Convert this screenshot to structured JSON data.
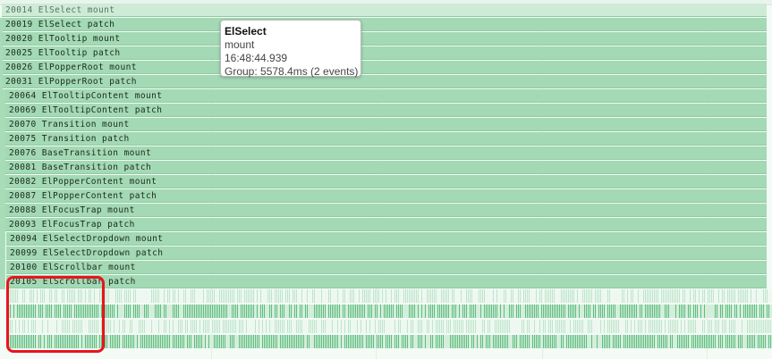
{
  "timeline": {
    "rows": [
      {
        "id": "20014",
        "label": "ElSelect mount"
      },
      {
        "id": "20019",
        "label": "ElSelect patch"
      },
      {
        "id": "20020",
        "label": "ElTooltip mount"
      },
      {
        "id": "20025",
        "label": "ElTooltip patch"
      },
      {
        "id": "20026",
        "label": "ElPopperRoot mount"
      },
      {
        "id": "20031",
        "label": "ElPopperRoot patch"
      },
      {
        "id": "20064",
        "label": "ElTooltipContent mount"
      },
      {
        "id": "20069",
        "label": "ElTooltipContent patch"
      },
      {
        "id": "20070",
        "label": "Transition mount"
      },
      {
        "id": "20075",
        "label": "Transition patch"
      },
      {
        "id": "20076",
        "label": "BaseTransition mount"
      },
      {
        "id": "20081",
        "label": "BaseTransition patch"
      },
      {
        "id": "20082",
        "label": "ElPopperContent mount"
      },
      {
        "id": "20087",
        "label": "ElPopperContent patch"
      },
      {
        "id": "20088",
        "label": "ElFocusTrap mount"
      },
      {
        "id": "20093",
        "label": "ElFocusTrap patch"
      },
      {
        "id": "20094",
        "label": "ElSelectDropdown mount"
      },
      {
        "id": "20099",
        "label": "ElSelectDropdown patch"
      },
      {
        "id": "20100",
        "label": "ElScrollbar mount"
      },
      {
        "id": "20105",
        "label": "ElScrollbar patch"
      }
    ]
  },
  "tooltip": {
    "title": "ElSelect",
    "subtitle": "mount",
    "time": "16:48:44.939",
    "group": "Group: 5578.4ms (2 events)"
  },
  "colors": {
    "bar": "#a3d9b4",
    "dense_track": "#5fbd7f",
    "sparse_track": "#bfe5cb",
    "highlight": "#e8141e"
  }
}
